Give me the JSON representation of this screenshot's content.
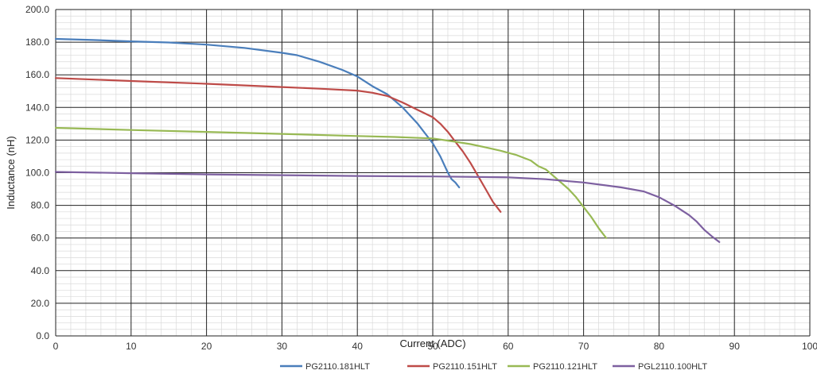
{
  "chart_data": {
    "type": "line",
    "xlabel": "Current (ADC)",
    "ylabel": "Inductance (nH)",
    "xlim": [
      0,
      100
    ],
    "ylim": [
      0,
      200
    ],
    "x_ticks": [
      "0",
      "10",
      "20",
      "30",
      "40",
      "50",
      "60",
      "70",
      "80",
      "90",
      "100"
    ],
    "y_ticks": [
      "0.0",
      "20.0",
      "40.0",
      "60.0",
      "80.0",
      "100.0",
      "120.0",
      "140.0",
      "160.0",
      "180.0",
      "200.0"
    ],
    "grid": true,
    "legend_position": "bottom",
    "series": [
      {
        "name": "PG2110.181HLT",
        "color": "#4a7ebb",
        "points": [
          [
            0,
            182
          ],
          [
            5,
            181.3
          ],
          [
            10,
            180.5
          ],
          [
            15,
            179.8
          ],
          [
            20,
            178.5
          ],
          [
            25,
            176.5
          ],
          [
            30,
            173.5
          ],
          [
            32,
            172
          ],
          [
            35,
            168
          ],
          [
            38,
            163
          ],
          [
            40,
            159
          ],
          [
            42,
            153
          ],
          [
            44,
            148
          ],
          [
            46,
            140
          ],
          [
            48,
            130
          ],
          [
            50,
            118
          ],
          [
            51,
            110
          ],
          [
            52,
            100
          ],
          [
            52.5,
            96
          ],
          [
            53,
            94
          ],
          [
            53.5,
            91
          ]
        ]
      },
      {
        "name": "PG2110.151HLT",
        "color": "#be4b48",
        "points": [
          [
            0,
            158
          ],
          [
            10,
            156.2
          ],
          [
            20,
            154.5
          ],
          [
            30,
            152.5
          ],
          [
            35,
            151.5
          ],
          [
            40,
            150.3
          ],
          [
            42,
            149
          ],
          [
            44,
            147
          ],
          [
            46,
            143
          ],
          [
            48,
            138.5
          ],
          [
            50,
            134
          ],
          [
            51,
            130
          ],
          [
            52,
            125
          ],
          [
            53,
            119
          ],
          [
            54,
            113
          ],
          [
            55,
            106
          ],
          [
            56,
            98
          ],
          [
            57,
            90
          ],
          [
            58,
            82
          ],
          [
            59,
            76
          ]
        ]
      },
      {
        "name": "PG2110.121HLT",
        "color": "#98b954",
        "points": [
          [
            0,
            127.5
          ],
          [
            10,
            126.2
          ],
          [
            20,
            125
          ],
          [
            30,
            123.8
          ],
          [
            40,
            122.5
          ],
          [
            45,
            121.9
          ],
          [
            50,
            121
          ],
          [
            53,
            119
          ],
          [
            55,
            117.5
          ],
          [
            57,
            115.5
          ],
          [
            59,
            113.5
          ],
          [
            61,
            111
          ],
          [
            63,
            107.5
          ],
          [
            64,
            104
          ],
          [
            65,
            102
          ],
          [
            66,
            98
          ],
          [
            67,
            94
          ],
          [
            68,
            90
          ],
          [
            69,
            85
          ],
          [
            70,
            79
          ],
          [
            71,
            73
          ],
          [
            72,
            66
          ],
          [
            73,
            60
          ]
        ]
      },
      {
        "name": "PGL2110.100HLT",
        "color": "#7d60a0",
        "points": [
          [
            0,
            100.5
          ],
          [
            10,
            99.7
          ],
          [
            20,
            99
          ],
          [
            30,
            98.5
          ],
          [
            40,
            98
          ],
          [
            50,
            97.7
          ],
          [
            60,
            97.2
          ],
          [
            65,
            96
          ],
          [
            70,
            94
          ],
          [
            75,
            91
          ],
          [
            78,
            88.5
          ],
          [
            80,
            85
          ],
          [
            82,
            80
          ],
          [
            84,
            74
          ],
          [
            85,
            70
          ],
          [
            86,
            65
          ],
          [
            87,
            61
          ],
          [
            88,
            57.5
          ]
        ]
      }
    ]
  }
}
